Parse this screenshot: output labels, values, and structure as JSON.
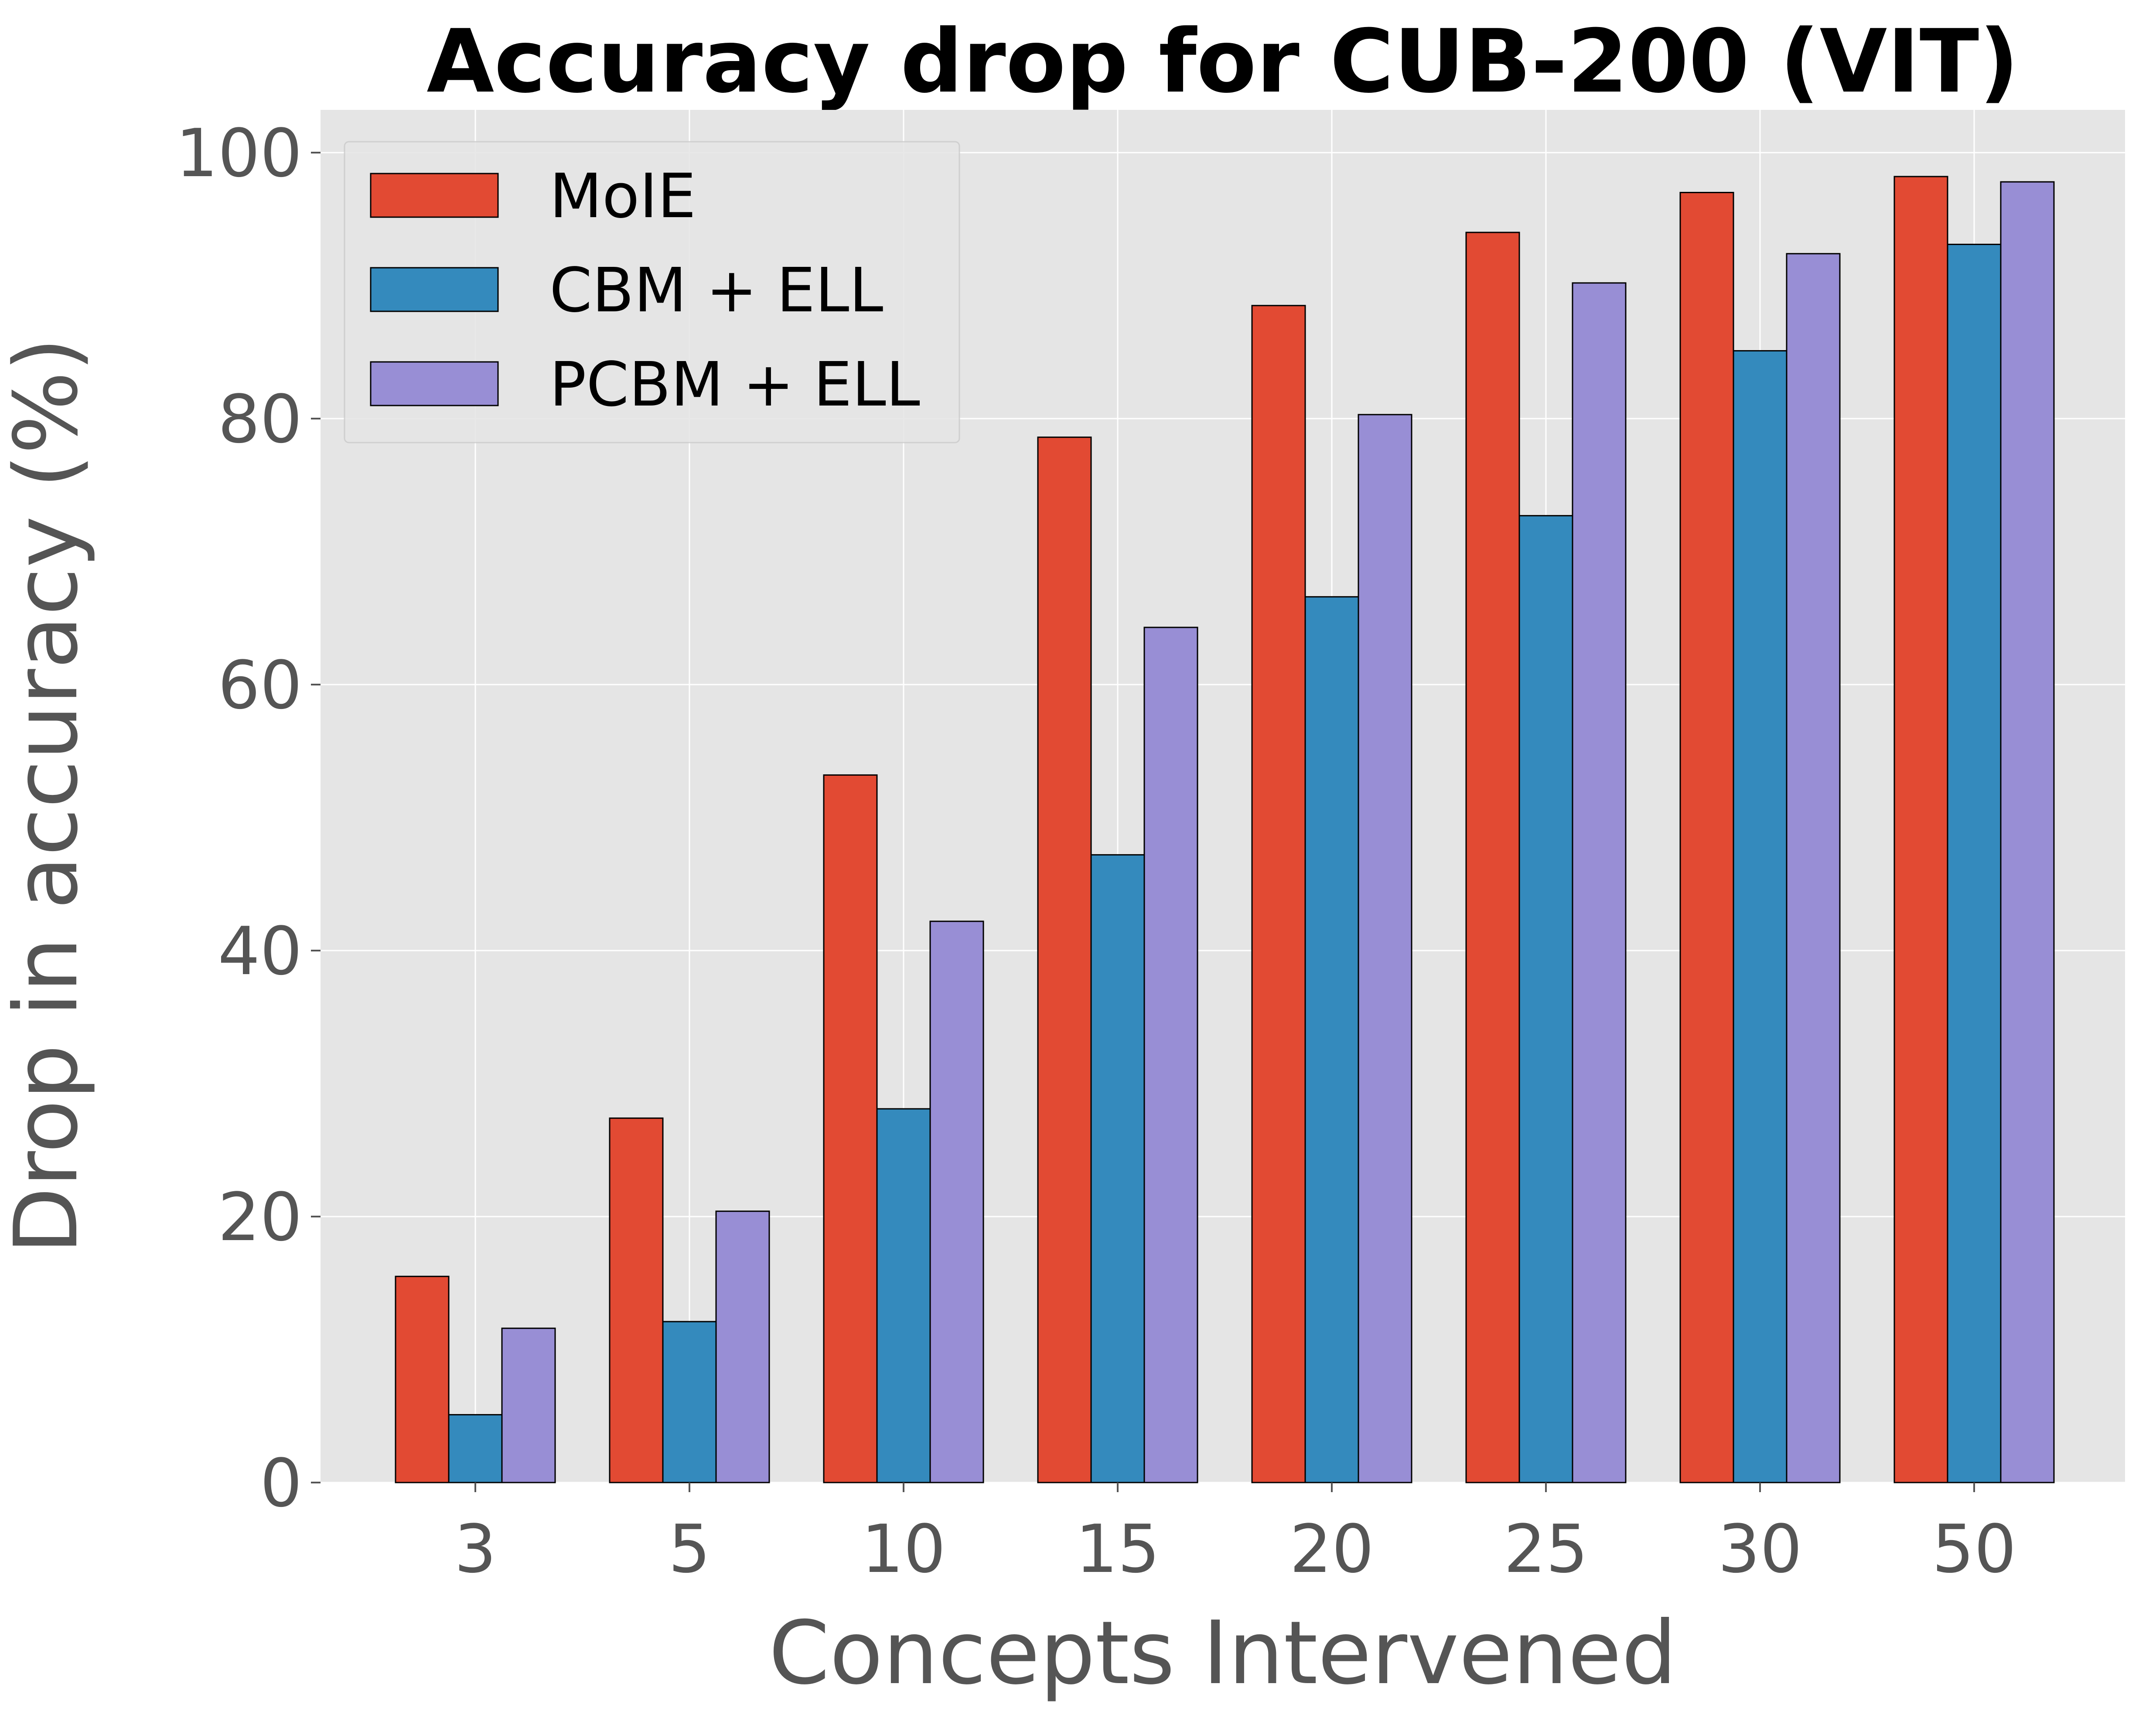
{
  "chart_data": {
    "type": "bar",
    "title": "Accuracy drop for CUB-200 (VIT)",
    "xlabel": "Concepts Intervened",
    "ylabel": "Drop in accuracy (%)",
    "categories": [
      "3",
      "5",
      "10",
      "15",
      "20",
      "25",
      "30",
      "50"
    ],
    "ylim": [
      0,
      100
    ],
    "yticks": [
      0,
      20,
      40,
      60,
      80,
      100
    ],
    "grid": true,
    "legend_position": "top-left",
    "series": [
      {
        "name": "MoIE",
        "color": "#e24a33",
        "values": [
          15.5,
          27.4,
          53.2,
          78.6,
          88.5,
          94.0,
          97.0,
          98.2
        ]
      },
      {
        "name": "CBM + ELL",
        "color": "#348abd",
        "values": [
          5.1,
          12.1,
          28.1,
          47.2,
          66.6,
          72.7,
          85.1,
          93.1
        ]
      },
      {
        "name": "PCBM + ELL",
        "color": "#988ed5",
        "values": [
          11.6,
          20.4,
          42.2,
          64.3,
          80.3,
          90.2,
          92.4,
          97.8
        ]
      }
    ]
  }
}
